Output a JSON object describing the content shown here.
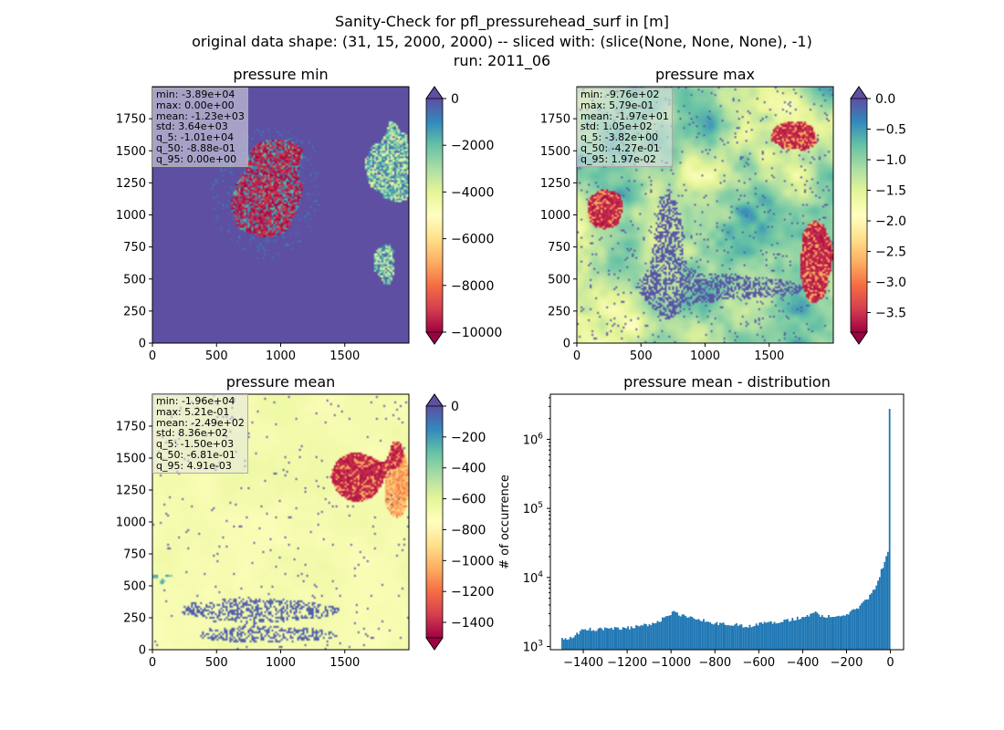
{
  "figure": {
    "title_lines": [
      "Sanity-Check for pfl_pressurehead_surf in [m]",
      "original data shape: (31, 15, 2000, 2000) -- sliced with: (slice(None, None, None), -1)",
      "run: 2011_06"
    ]
  },
  "colors": {
    "spectral": [
      "#9e0142",
      "#d53e4f",
      "#f46d43",
      "#fdae61",
      "#fee08b",
      "#ffffbf",
      "#e6f598",
      "#abdda4",
      "#66c2a5",
      "#3288bd",
      "#5e4fa2"
    ],
    "hist_bar": "#1f77b4"
  },
  "chart_data": [
    {
      "type": "heatmap",
      "title": "pressure min",
      "xlim": [
        0,
        2000
      ],
      "ylim": [
        0,
        2000
      ],
      "xticks": [
        0,
        500,
        1000,
        1500
      ],
      "yticks": [
        0,
        250,
        500,
        750,
        1000,
        1250,
        1500,
        1750
      ],
      "colorbar": {
        "range": [
          -10000,
          0
        ],
        "ticks": [
          0,
          -2000,
          -4000,
          -6000,
          -8000,
          -10000
        ],
        "extend": "both",
        "colormap": "Spectral"
      },
      "stats": [
        "min: -3.89e+04",
        "max: 0.00e+00",
        "mean: -1.23e+03",
        "std: 3.64e+03",
        "q_5: -1.01e+04",
        "q_50: -8.88e-01",
        "q_95: 0.00e+00"
      ]
    },
    {
      "type": "heatmap",
      "title": "pressure max",
      "xlim": [
        0,
        2000
      ],
      "ylim": [
        0,
        2000
      ],
      "xticks": [
        0,
        500,
        1000,
        1500
      ],
      "yticks": [
        0,
        250,
        500,
        750,
        1000,
        1250,
        1500,
        1750
      ],
      "colorbar": {
        "range": [
          -3.82,
          0
        ],
        "ticks": [
          "0.0",
          "−0.5",
          "−1.0",
          "−1.5",
          "−2.0",
          "−2.5",
          "−3.0",
          "−3.5"
        ],
        "tick_values": [
          0,
          -0.5,
          -1.0,
          -1.5,
          -2.0,
          -2.5,
          -3.0,
          -3.5
        ],
        "extend": "both",
        "colormap": "Spectral"
      },
      "stats": [
        "min: -9.76e+02",
        "max: 5.79e-01",
        "mean: -1.97e+01",
        "std: 1.05e+02",
        "q_5: -3.82e+00",
        "q_50: -4.27e-01",
        "q_95: 1.97e-02"
      ]
    },
    {
      "type": "heatmap",
      "title": "pressure mean",
      "xlim": [
        0,
        2000
      ],
      "ylim": [
        0,
        2000
      ],
      "xticks": [
        0,
        500,
        1000,
        1500
      ],
      "yticks": [
        0,
        250,
        500,
        750,
        1000,
        1250,
        1500,
        1750
      ],
      "colorbar": {
        "range": [
          -1500,
          0
        ],
        "ticks": [
          0,
          -200,
          -400,
          -600,
          -800,
          -1000,
          -1200,
          -1400
        ],
        "extend": "both",
        "colormap": "Spectral"
      },
      "stats": [
        "min: -1.96e+04",
        "max: 5.21e-01",
        "mean: -2.49e+02",
        "std: 8.36e+02",
        "q_5: -1.50e+03",
        "q_50: -6.81e-01",
        "q_95: 4.91e-03"
      ]
    },
    {
      "type": "bar",
      "title": "pressure mean - distribution",
      "ylabel": "# of occurrence",
      "yscale": "log",
      "xlim": [
        -1550,
        60
      ],
      "ylim": [
        900,
        4500000
      ],
      "xticks": [
        -1400,
        -1200,
        -1000,
        -800,
        -600,
        -400,
        -200,
        0
      ],
      "yticks": [
        1000,
        10000,
        100000,
        1000000
      ],
      "bin_width": 7.5,
      "histogram_profile": {
        "x": [
          -1500,
          -1450,
          -1400,
          -1300,
          -1200,
          -1100,
          -1010,
          -990,
          -970,
          -950,
          -900,
          -800,
          -700,
          -650,
          -600,
          -500,
          -400,
          -340,
          -330,
          -300,
          -250,
          -200,
          -150,
          -100,
          -80,
          -60,
          -50,
          -40,
          -30,
          -20,
          -15,
          -10,
          -7,
          -5,
          -2,
          0
        ],
        "y": [
          1250,
          1350,
          1750,
          1800,
          1850,
          2100,
          2700,
          3500,
          3000,
          2800,
          2550,
          2200,
          2050,
          1950,
          2150,
          2300,
          2650,
          3100,
          2850,
          2700,
          2750,
          2900,
          3600,
          5000,
          6300,
          8000,
          10000,
          13000,
          15000,
          19000,
          22000,
          24000,
          23000,
          2600000,
          3000000,
          1200000
        ]
      }
    }
  ]
}
